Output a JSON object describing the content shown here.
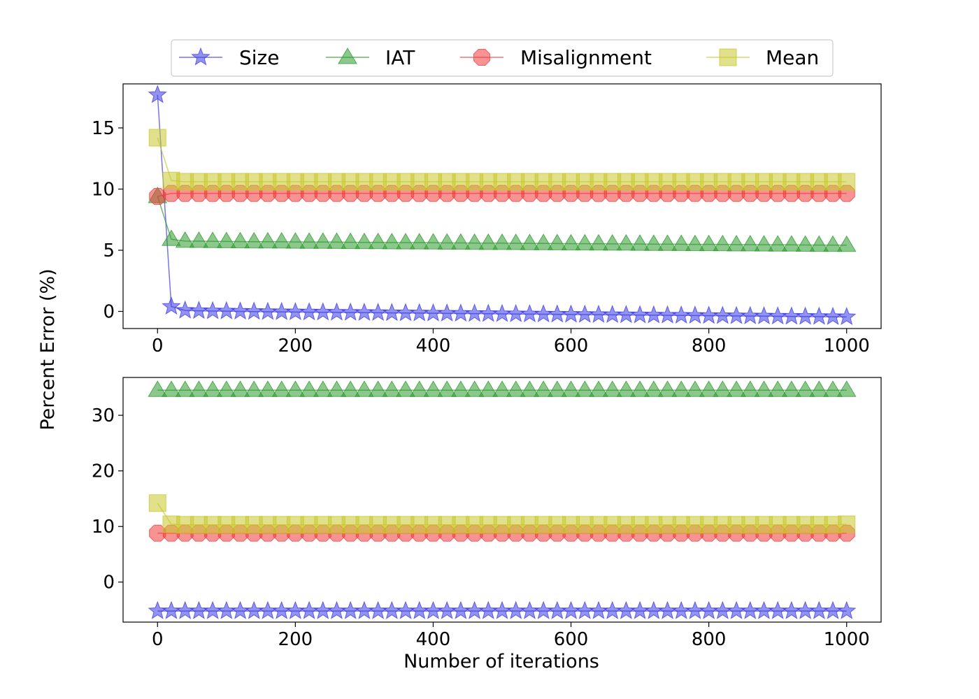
{
  "colors": {
    "Size": "#3a3ae8",
    "IAT": "#2e9a2e",
    "Misalignment": "#f03a3a",
    "Mean": "#c8c82e"
  },
  "legend": {
    "placement": "top-center",
    "entries": [
      {
        "label": "Size",
        "marker": "star"
      },
      {
        "label": "IAT",
        "marker": "triangle"
      },
      {
        "label": "Misalignment",
        "marker": "octagon"
      },
      {
        "label": "Mean",
        "marker": "square"
      }
    ]
  },
  "chart_data": [
    {
      "type": "line",
      "panel": "top",
      "xlabel": "",
      "ylabel": "Percent Error (%)",
      "xlim": [
        -50,
        1050
      ],
      "ylim": [
        -1.4,
        18.6
      ],
      "xticks": [
        0,
        200,
        400,
        600,
        800,
        1000
      ],
      "yticks": [
        0,
        5,
        10,
        15
      ],
      "grid": false,
      "x_step": 20,
      "series": [
        {
          "name": "Size",
          "marker": "star",
          "values": [
            17.7,
            0.4,
            0.08,
            0.05,
            0.03,
            0.02,
            0.0,
            -0.01,
            -0.03,
            -0.04,
            -0.05,
            -0.06,
            -0.07,
            -0.08,
            -0.09,
            -0.1,
            -0.11,
            -0.12,
            -0.13,
            -0.14,
            -0.15,
            -0.16,
            -0.17,
            -0.18,
            -0.19,
            -0.2,
            -0.21,
            -0.22,
            -0.23,
            -0.24,
            -0.25,
            -0.26,
            -0.27,
            -0.28,
            -0.29,
            -0.3,
            -0.31,
            -0.32,
            -0.33,
            -0.34,
            -0.35,
            -0.36,
            -0.37,
            -0.38,
            -0.39,
            -0.4,
            -0.41,
            -0.42,
            -0.43,
            -0.44,
            -0.45
          ]
        },
        {
          "name": "IAT",
          "marker": "triangle",
          "values": [
            9.4,
            5.9,
            5.75,
            5.74,
            5.73,
            5.72,
            5.71,
            5.7,
            5.7,
            5.69,
            5.68,
            5.67,
            5.67,
            5.66,
            5.65,
            5.64,
            5.64,
            5.63,
            5.62,
            5.62,
            5.61,
            5.6,
            5.6,
            5.59,
            5.58,
            5.58,
            5.57,
            5.56,
            5.56,
            5.55,
            5.54,
            5.54,
            5.53,
            5.52,
            5.52,
            5.51,
            5.5,
            5.5,
            5.49,
            5.48,
            5.48,
            5.47,
            5.46,
            5.46,
            5.45,
            5.44,
            5.44,
            5.43,
            5.42,
            5.42,
            5.41
          ]
        },
        {
          "name": "Misalignment",
          "marker": "octagon",
          "values": [
            9.4,
            9.65,
            9.65,
            9.65,
            9.65,
            9.65,
            9.65,
            9.65,
            9.65,
            9.65,
            9.65,
            9.65,
            9.65,
            9.65,
            9.65,
            9.65,
            9.65,
            9.65,
            9.65,
            9.65,
            9.65,
            9.65,
            9.65,
            9.65,
            9.65,
            9.65,
            9.65,
            9.65,
            9.65,
            9.65,
            9.65,
            9.65,
            9.65,
            9.65,
            9.65,
            9.65,
            9.65,
            9.65,
            9.65,
            9.65,
            9.65,
            9.65,
            9.65,
            9.65,
            9.65,
            9.65,
            9.65,
            9.65,
            9.65,
            9.65,
            9.65
          ]
        },
        {
          "name": "Mean",
          "marker": "square",
          "values": [
            14.2,
            10.7,
            10.6,
            10.6,
            10.6,
            10.6,
            10.6,
            10.6,
            10.6,
            10.6,
            10.6,
            10.6,
            10.6,
            10.6,
            10.6,
            10.6,
            10.6,
            10.6,
            10.6,
            10.6,
            10.6,
            10.6,
            10.6,
            10.6,
            10.6,
            10.6,
            10.6,
            10.6,
            10.6,
            10.6,
            10.6,
            10.6,
            10.6,
            10.6,
            10.6,
            10.6,
            10.6,
            10.6,
            10.6,
            10.6,
            10.6,
            10.6,
            10.6,
            10.6,
            10.6,
            10.6,
            10.6,
            10.6,
            10.6,
            10.6,
            10.6
          ]
        }
      ]
    },
    {
      "type": "line",
      "panel": "bottom",
      "xlabel": "Number of iterations",
      "ylabel": "Percent Error (%)",
      "xlim": [
        -50,
        1050
      ],
      "ylim": [
        -7.2,
        36.8
      ],
      "xticks": [
        0,
        200,
        400,
        600,
        800,
        1000
      ],
      "yticks": [
        0,
        10,
        20,
        30
      ],
      "grid": false,
      "x_step": 20,
      "series": [
        {
          "name": "Size",
          "marker": "star",
          "values": [
            -5.2,
            -5.2,
            -5.2,
            -5.2,
            -5.2,
            -5.2,
            -5.2,
            -5.2,
            -5.2,
            -5.2,
            -5.2,
            -5.2,
            -5.2,
            -5.2,
            -5.2,
            -5.2,
            -5.2,
            -5.2,
            -5.2,
            -5.2,
            -5.2,
            -5.2,
            -5.2,
            -5.2,
            -5.2,
            -5.2,
            -5.2,
            -5.2,
            -5.2,
            -5.2,
            -5.2,
            -5.2,
            -5.2,
            -5.2,
            -5.2,
            -5.2,
            -5.2,
            -5.2,
            -5.2,
            -5.2,
            -5.2,
            -5.2,
            -5.2,
            -5.2,
            -5.2,
            -5.2,
            -5.2,
            -5.2,
            -5.2,
            -5.2,
            -5.2
          ]
        },
        {
          "name": "IAT",
          "marker": "triangle",
          "values": [
            34.5,
            34.5,
            34.5,
            34.5,
            34.5,
            34.5,
            34.5,
            34.5,
            34.5,
            34.5,
            34.5,
            34.5,
            34.5,
            34.5,
            34.5,
            34.5,
            34.5,
            34.5,
            34.5,
            34.5,
            34.5,
            34.5,
            34.5,
            34.5,
            34.5,
            34.5,
            34.5,
            34.5,
            34.5,
            34.5,
            34.5,
            34.5,
            34.5,
            34.5,
            34.5,
            34.5,
            34.5,
            34.5,
            34.5,
            34.5,
            34.5,
            34.5,
            34.5,
            34.5,
            34.5,
            34.5,
            34.5,
            34.5,
            34.5,
            34.5,
            34.5
          ]
        },
        {
          "name": "Misalignment",
          "marker": "octagon",
          "values": [
            8.8,
            8.8,
            8.8,
            8.8,
            8.8,
            8.8,
            8.8,
            8.8,
            8.8,
            8.8,
            8.8,
            8.8,
            8.8,
            8.8,
            8.8,
            8.8,
            8.8,
            8.8,
            8.8,
            8.8,
            8.8,
            8.8,
            8.8,
            8.8,
            8.8,
            8.8,
            8.8,
            8.8,
            8.8,
            8.8,
            8.8,
            8.8,
            8.8,
            8.8,
            8.8,
            8.8,
            8.8,
            8.8,
            8.8,
            8.8,
            8.8,
            8.8,
            8.8,
            8.8,
            8.8,
            8.8,
            8.8,
            8.8,
            8.8,
            8.8,
            8.8
          ]
        },
        {
          "name": "Mean",
          "marker": "square",
          "values": [
            14.2,
            10.4,
            10.3,
            10.3,
            10.3,
            10.3,
            10.3,
            10.3,
            10.3,
            10.3,
            10.3,
            10.3,
            10.3,
            10.3,
            10.3,
            10.3,
            10.3,
            10.3,
            10.3,
            10.3,
            10.3,
            10.3,
            10.3,
            10.3,
            10.3,
            10.3,
            10.3,
            10.3,
            10.3,
            10.3,
            10.3,
            10.3,
            10.3,
            10.3,
            10.3,
            10.3,
            10.3,
            10.3,
            10.3,
            10.3,
            10.3,
            10.3,
            10.3,
            10.3,
            10.3,
            10.3,
            10.3,
            10.3,
            10.3,
            10.3,
            10.4
          ]
        }
      ]
    }
  ]
}
